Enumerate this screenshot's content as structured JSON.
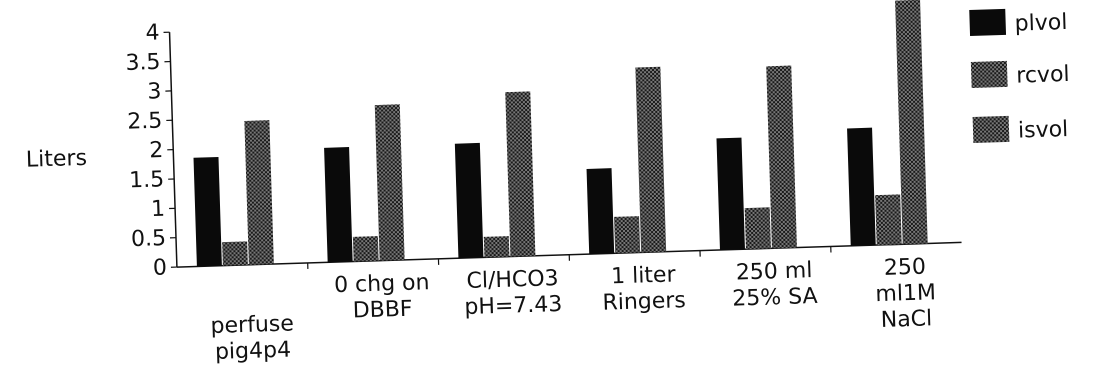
{
  "chart_data": {
    "type": "bar",
    "title": "",
    "xlabel": "",
    "ylabel": "Liters",
    "ylim": [
      0,
      4
    ],
    "yticks": [
      "0",
      "0.5",
      "1",
      "1.5",
      "2",
      "2.5",
      "3",
      "3.5",
      "4"
    ],
    "grid": false,
    "legend_position": "right",
    "categories": [
      [
        "perfuse",
        "pig4p4"
      ],
      [
        "0 chg on",
        "DBBF"
      ],
      [
        "Cl/HCO3",
        "pH=7.43"
      ],
      [
        "1 liter",
        "Ringers"
      ],
      [
        "250 ml",
        "25% SA"
      ],
      [
        "250",
        "ml1M",
        "NaCl"
      ]
    ],
    "series": [
      {
        "name": "plvol",
        "color": "#0a0a0a",
        "pattern": "solid",
        "values": [
          1.85,
          1.95,
          1.95,
          1.45,
          1.9,
          2.0
        ]
      },
      {
        "name": "rcvol",
        "color": "#3a3a3a",
        "pattern": "dotted",
        "values": [
          0.4,
          0.42,
          0.35,
          0.62,
          0.7,
          0.85
        ]
      },
      {
        "name": "isvol",
        "color": "#3a3a3a",
        "pattern": "dotted",
        "values": [
          2.45,
          2.65,
          2.8,
          3.15,
          3.1,
          4.15
        ]
      }
    ],
    "legend_labels": [
      "plvol",
      "rcvol",
      "isvol"
    ]
  }
}
